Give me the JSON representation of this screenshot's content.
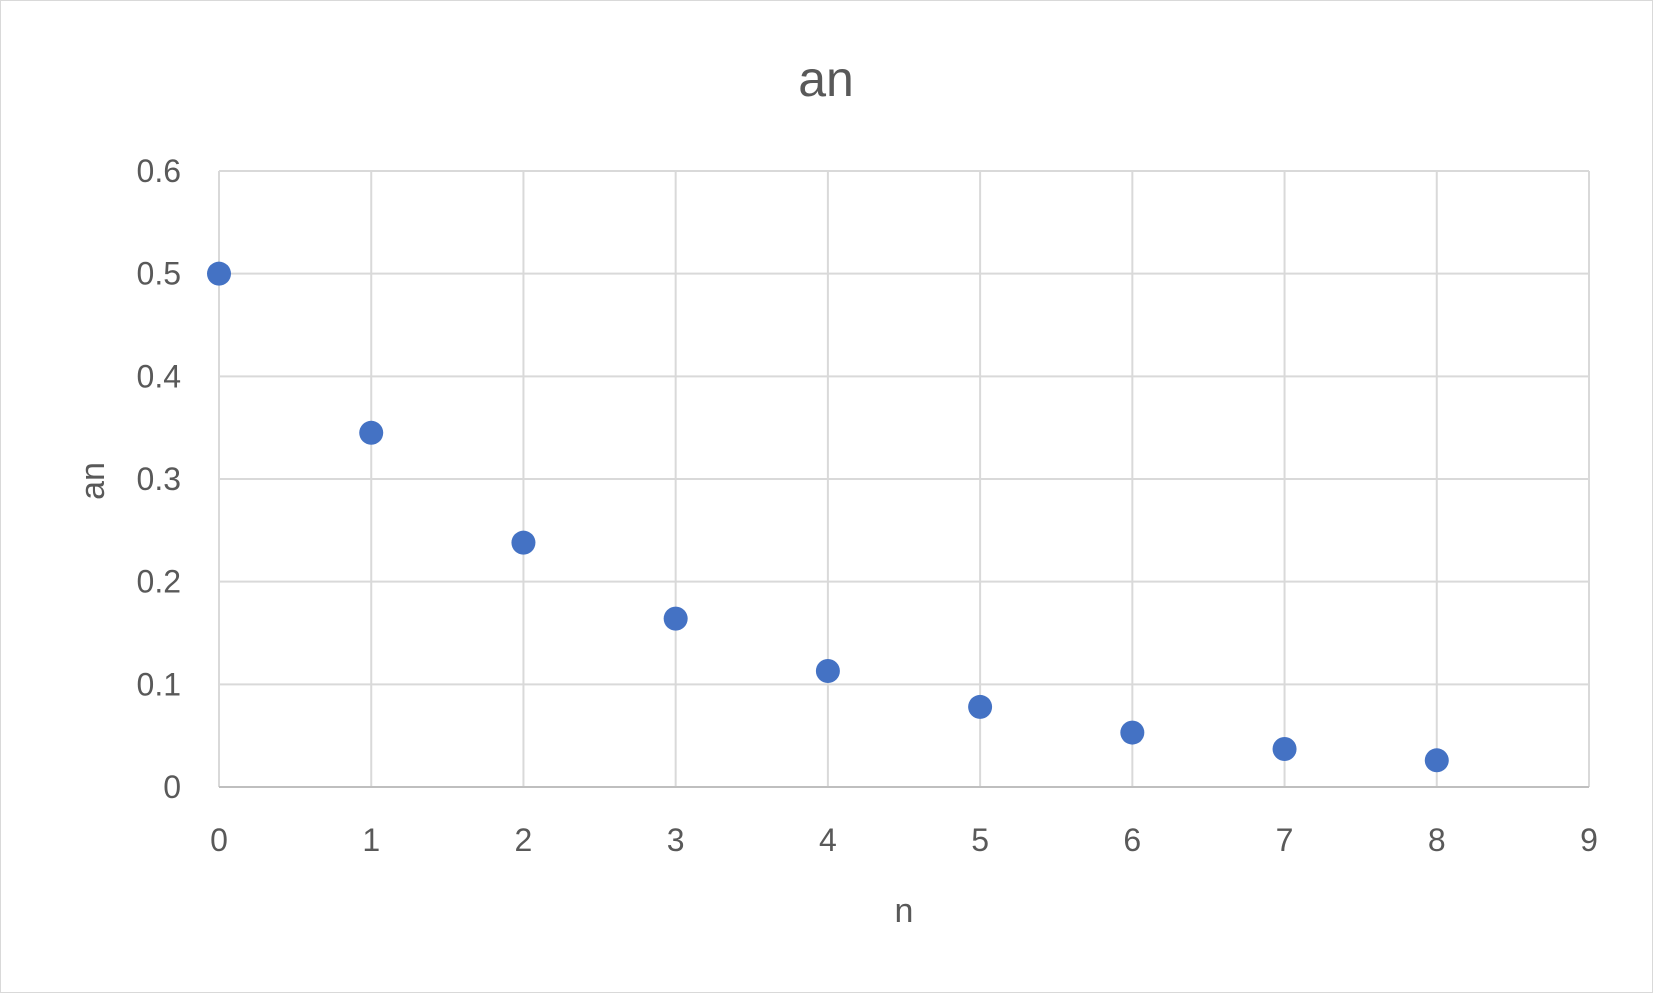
{
  "chart_data": {
    "type": "scatter",
    "title": "an",
    "xlabel": "n",
    "ylabel": "an",
    "xlim": [
      0,
      9
    ],
    "ylim": [
      0,
      0.6
    ],
    "x_ticks": [
      0,
      1,
      2,
      3,
      4,
      5,
      6,
      7,
      8,
      9
    ],
    "y_ticks": [
      0,
      0.1,
      0.2,
      0.3,
      0.4,
      0.5,
      0.6
    ],
    "x_tick_labels": [
      "0",
      "1",
      "2",
      "3",
      "4",
      "5",
      "6",
      "7",
      "8",
      "9"
    ],
    "y_tick_labels": [
      "0",
      "0.1",
      "0.2",
      "0.3",
      "0.4",
      "0.5",
      "0.6"
    ],
    "grid": true,
    "legend": "none",
    "series": [
      {
        "name": "an",
        "color": "#4472C4",
        "x": [
          0,
          1,
          2,
          3,
          4,
          5,
          6,
          7,
          8
        ],
        "y": [
          0.5,
          0.345,
          0.238,
          0.164,
          0.113,
          0.078,
          0.053,
          0.037,
          0.026
        ]
      }
    ]
  }
}
